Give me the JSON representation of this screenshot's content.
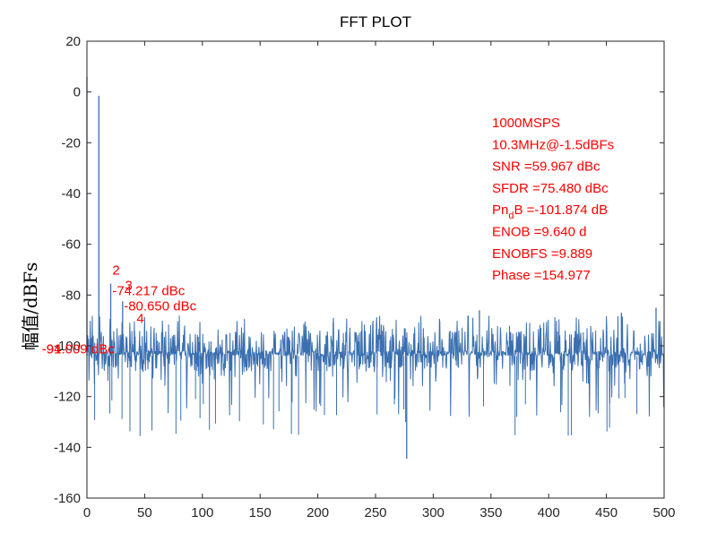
{
  "chart_data": {
    "type": "line",
    "title": "FFT PLOT",
    "xlabel": "",
    "ylabel": "幅值/dBFs",
    "xlim": [
      0,
      500
    ],
    "ylim": [
      -160,
      20
    ],
    "xticks": [
      0,
      50,
      100,
      150,
      200,
      250,
      300,
      350,
      400,
      450,
      500
    ],
    "yticks": [
      20,
      0,
      -20,
      -40,
      -60,
      -80,
      -100,
      -120,
      -140,
      -160
    ],
    "grid": false,
    "line_color": "#3a6fb0",
    "annotation_color": "#ff0000",
    "noise_floor_dBFS": -101.874,
    "noise": {
      "baseline": [
        -104,
        -102
      ],
      "band": [
        -110,
        -94
      ],
      "min_spike": -144.5,
      "max_spike": -86
    },
    "series": [
      {
        "values_description": "spectrum",
        "peaks": [
          {
            "x": 0,
            "y": 6
          },
          {
            "x": 10.3,
            "y": -1.5
          },
          {
            "x": 20.6,
            "y": -75.5
          },
          {
            "x": 30.9,
            "y": -82.5
          },
          {
            "x": 41.2,
            "y": -94.0
          },
          {
            "x": 277,
            "y": -144.5
          },
          {
            "x": 340,
            "y": -86
          },
          {
            "x": 463,
            "y": -87
          },
          {
            "x": 493,
            "y": -85
          }
        ]
      }
    ],
    "harmonic_labels": [
      {
        "text": "2",
        "x": 22,
        "y": -72
      },
      {
        "text": "3",
        "x": 33,
        "y": -78
      },
      {
        "text": "4",
        "x": 43,
        "y": -91
      }
    ],
    "harmonic_values": [
      {
        "text": "-74.217 dBc",
        "x": 22,
        "y": -80
      },
      {
        "text": "-80.650 dBc",
        "x": 32,
        "y": -86
      },
      {
        "text": "-94.009 dBc",
        "x": -39,
        "y": -103
      },
      {
        "text": "-91",
        "x": -39,
        "y": -103
      }
    ],
    "info_lines": [
      "1000MSPS",
      "10.3MHz@-1.5dBFs",
      "SNR =59.967 dBc",
      "SFDR =75.480 dBc",
      "Pn",
      "d",
      "B =-101.874 dB",
      "ENOB =9.640 d",
      "ENOBFS =9.889",
      "Phase =154.977"
    ]
  }
}
